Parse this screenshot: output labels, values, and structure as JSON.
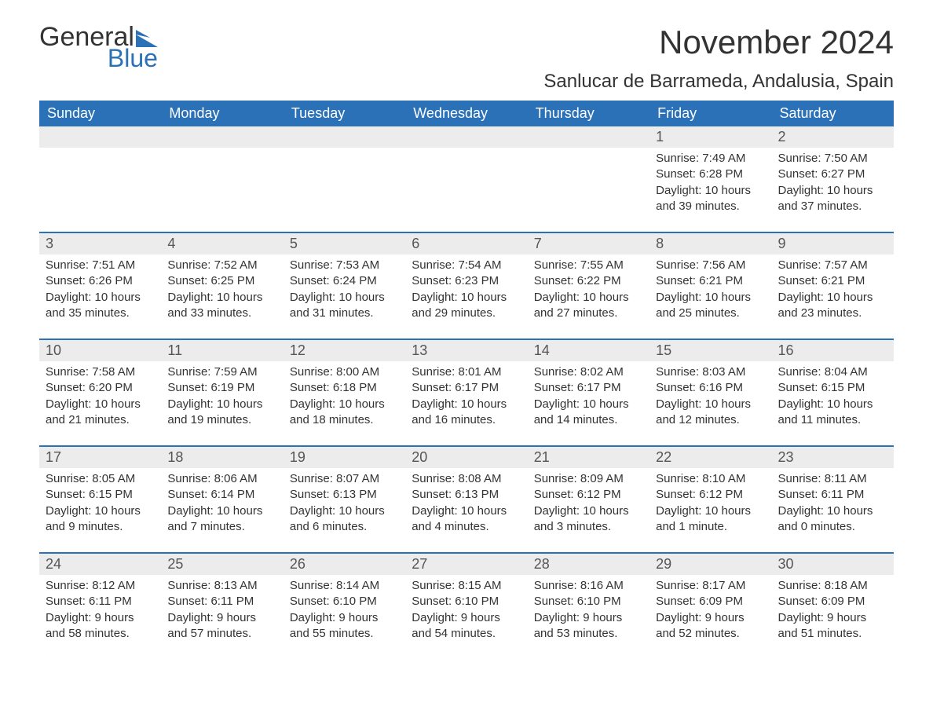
{
  "logo": {
    "text_general": "General",
    "text_blue": "Blue",
    "flag_color": "#2b71b8"
  },
  "title": "November 2024",
  "location": "Sanlucar de Barrameda, Andalusia, Spain",
  "colors": {
    "header_bg": "#2b71b8",
    "header_text": "#ffffff",
    "daynum_bg": "#ececec",
    "text": "#333333",
    "week_border": "#2b71b8"
  },
  "day_names": [
    "Sunday",
    "Monday",
    "Tuesday",
    "Wednesday",
    "Thursday",
    "Friday",
    "Saturday"
  ],
  "weeks": [
    [
      {
        "day": "",
        "sunrise": "",
        "sunset": "",
        "daylight": ""
      },
      {
        "day": "",
        "sunrise": "",
        "sunset": "",
        "daylight": ""
      },
      {
        "day": "",
        "sunrise": "",
        "sunset": "",
        "daylight": ""
      },
      {
        "day": "",
        "sunrise": "",
        "sunset": "",
        "daylight": ""
      },
      {
        "day": "",
        "sunrise": "",
        "sunset": "",
        "daylight": ""
      },
      {
        "day": "1",
        "sunrise": "Sunrise: 7:49 AM",
        "sunset": "Sunset: 6:28 PM",
        "daylight": "Daylight: 10 hours and 39 minutes."
      },
      {
        "day": "2",
        "sunrise": "Sunrise: 7:50 AM",
        "sunset": "Sunset: 6:27 PM",
        "daylight": "Daylight: 10 hours and 37 minutes."
      }
    ],
    [
      {
        "day": "3",
        "sunrise": "Sunrise: 7:51 AM",
        "sunset": "Sunset: 6:26 PM",
        "daylight": "Daylight: 10 hours and 35 minutes."
      },
      {
        "day": "4",
        "sunrise": "Sunrise: 7:52 AM",
        "sunset": "Sunset: 6:25 PM",
        "daylight": "Daylight: 10 hours and 33 minutes."
      },
      {
        "day": "5",
        "sunrise": "Sunrise: 7:53 AM",
        "sunset": "Sunset: 6:24 PM",
        "daylight": "Daylight: 10 hours and 31 minutes."
      },
      {
        "day": "6",
        "sunrise": "Sunrise: 7:54 AM",
        "sunset": "Sunset: 6:23 PM",
        "daylight": "Daylight: 10 hours and 29 minutes."
      },
      {
        "day": "7",
        "sunrise": "Sunrise: 7:55 AM",
        "sunset": "Sunset: 6:22 PM",
        "daylight": "Daylight: 10 hours and 27 minutes."
      },
      {
        "day": "8",
        "sunrise": "Sunrise: 7:56 AM",
        "sunset": "Sunset: 6:21 PM",
        "daylight": "Daylight: 10 hours and 25 minutes."
      },
      {
        "day": "9",
        "sunrise": "Sunrise: 7:57 AM",
        "sunset": "Sunset: 6:21 PM",
        "daylight": "Daylight: 10 hours and 23 minutes."
      }
    ],
    [
      {
        "day": "10",
        "sunrise": "Sunrise: 7:58 AM",
        "sunset": "Sunset: 6:20 PM",
        "daylight": "Daylight: 10 hours and 21 minutes."
      },
      {
        "day": "11",
        "sunrise": "Sunrise: 7:59 AM",
        "sunset": "Sunset: 6:19 PM",
        "daylight": "Daylight: 10 hours and 19 minutes."
      },
      {
        "day": "12",
        "sunrise": "Sunrise: 8:00 AM",
        "sunset": "Sunset: 6:18 PM",
        "daylight": "Daylight: 10 hours and 18 minutes."
      },
      {
        "day": "13",
        "sunrise": "Sunrise: 8:01 AM",
        "sunset": "Sunset: 6:17 PM",
        "daylight": "Daylight: 10 hours and 16 minutes."
      },
      {
        "day": "14",
        "sunrise": "Sunrise: 8:02 AM",
        "sunset": "Sunset: 6:17 PM",
        "daylight": "Daylight: 10 hours and 14 minutes."
      },
      {
        "day": "15",
        "sunrise": "Sunrise: 8:03 AM",
        "sunset": "Sunset: 6:16 PM",
        "daylight": "Daylight: 10 hours and 12 minutes."
      },
      {
        "day": "16",
        "sunrise": "Sunrise: 8:04 AM",
        "sunset": "Sunset: 6:15 PM",
        "daylight": "Daylight: 10 hours and 11 minutes."
      }
    ],
    [
      {
        "day": "17",
        "sunrise": "Sunrise: 8:05 AM",
        "sunset": "Sunset: 6:15 PM",
        "daylight": "Daylight: 10 hours and 9 minutes."
      },
      {
        "day": "18",
        "sunrise": "Sunrise: 8:06 AM",
        "sunset": "Sunset: 6:14 PM",
        "daylight": "Daylight: 10 hours and 7 minutes."
      },
      {
        "day": "19",
        "sunrise": "Sunrise: 8:07 AM",
        "sunset": "Sunset: 6:13 PM",
        "daylight": "Daylight: 10 hours and 6 minutes."
      },
      {
        "day": "20",
        "sunrise": "Sunrise: 8:08 AM",
        "sunset": "Sunset: 6:13 PM",
        "daylight": "Daylight: 10 hours and 4 minutes."
      },
      {
        "day": "21",
        "sunrise": "Sunrise: 8:09 AM",
        "sunset": "Sunset: 6:12 PM",
        "daylight": "Daylight: 10 hours and 3 minutes."
      },
      {
        "day": "22",
        "sunrise": "Sunrise: 8:10 AM",
        "sunset": "Sunset: 6:12 PM",
        "daylight": "Daylight: 10 hours and 1 minute."
      },
      {
        "day": "23",
        "sunrise": "Sunrise: 8:11 AM",
        "sunset": "Sunset: 6:11 PM",
        "daylight": "Daylight: 10 hours and 0 minutes."
      }
    ],
    [
      {
        "day": "24",
        "sunrise": "Sunrise: 8:12 AM",
        "sunset": "Sunset: 6:11 PM",
        "daylight": "Daylight: 9 hours and 58 minutes."
      },
      {
        "day": "25",
        "sunrise": "Sunrise: 8:13 AM",
        "sunset": "Sunset: 6:11 PM",
        "daylight": "Daylight: 9 hours and 57 minutes."
      },
      {
        "day": "26",
        "sunrise": "Sunrise: 8:14 AM",
        "sunset": "Sunset: 6:10 PM",
        "daylight": "Daylight: 9 hours and 55 minutes."
      },
      {
        "day": "27",
        "sunrise": "Sunrise: 8:15 AM",
        "sunset": "Sunset: 6:10 PM",
        "daylight": "Daylight: 9 hours and 54 minutes."
      },
      {
        "day": "28",
        "sunrise": "Sunrise: 8:16 AM",
        "sunset": "Sunset: 6:10 PM",
        "daylight": "Daylight: 9 hours and 53 minutes."
      },
      {
        "day": "29",
        "sunrise": "Sunrise: 8:17 AM",
        "sunset": "Sunset: 6:09 PM",
        "daylight": "Daylight: 9 hours and 52 minutes."
      },
      {
        "day": "30",
        "sunrise": "Sunrise: 8:18 AM",
        "sunset": "Sunset: 6:09 PM",
        "daylight": "Daylight: 9 hours and 51 minutes."
      }
    ]
  ]
}
